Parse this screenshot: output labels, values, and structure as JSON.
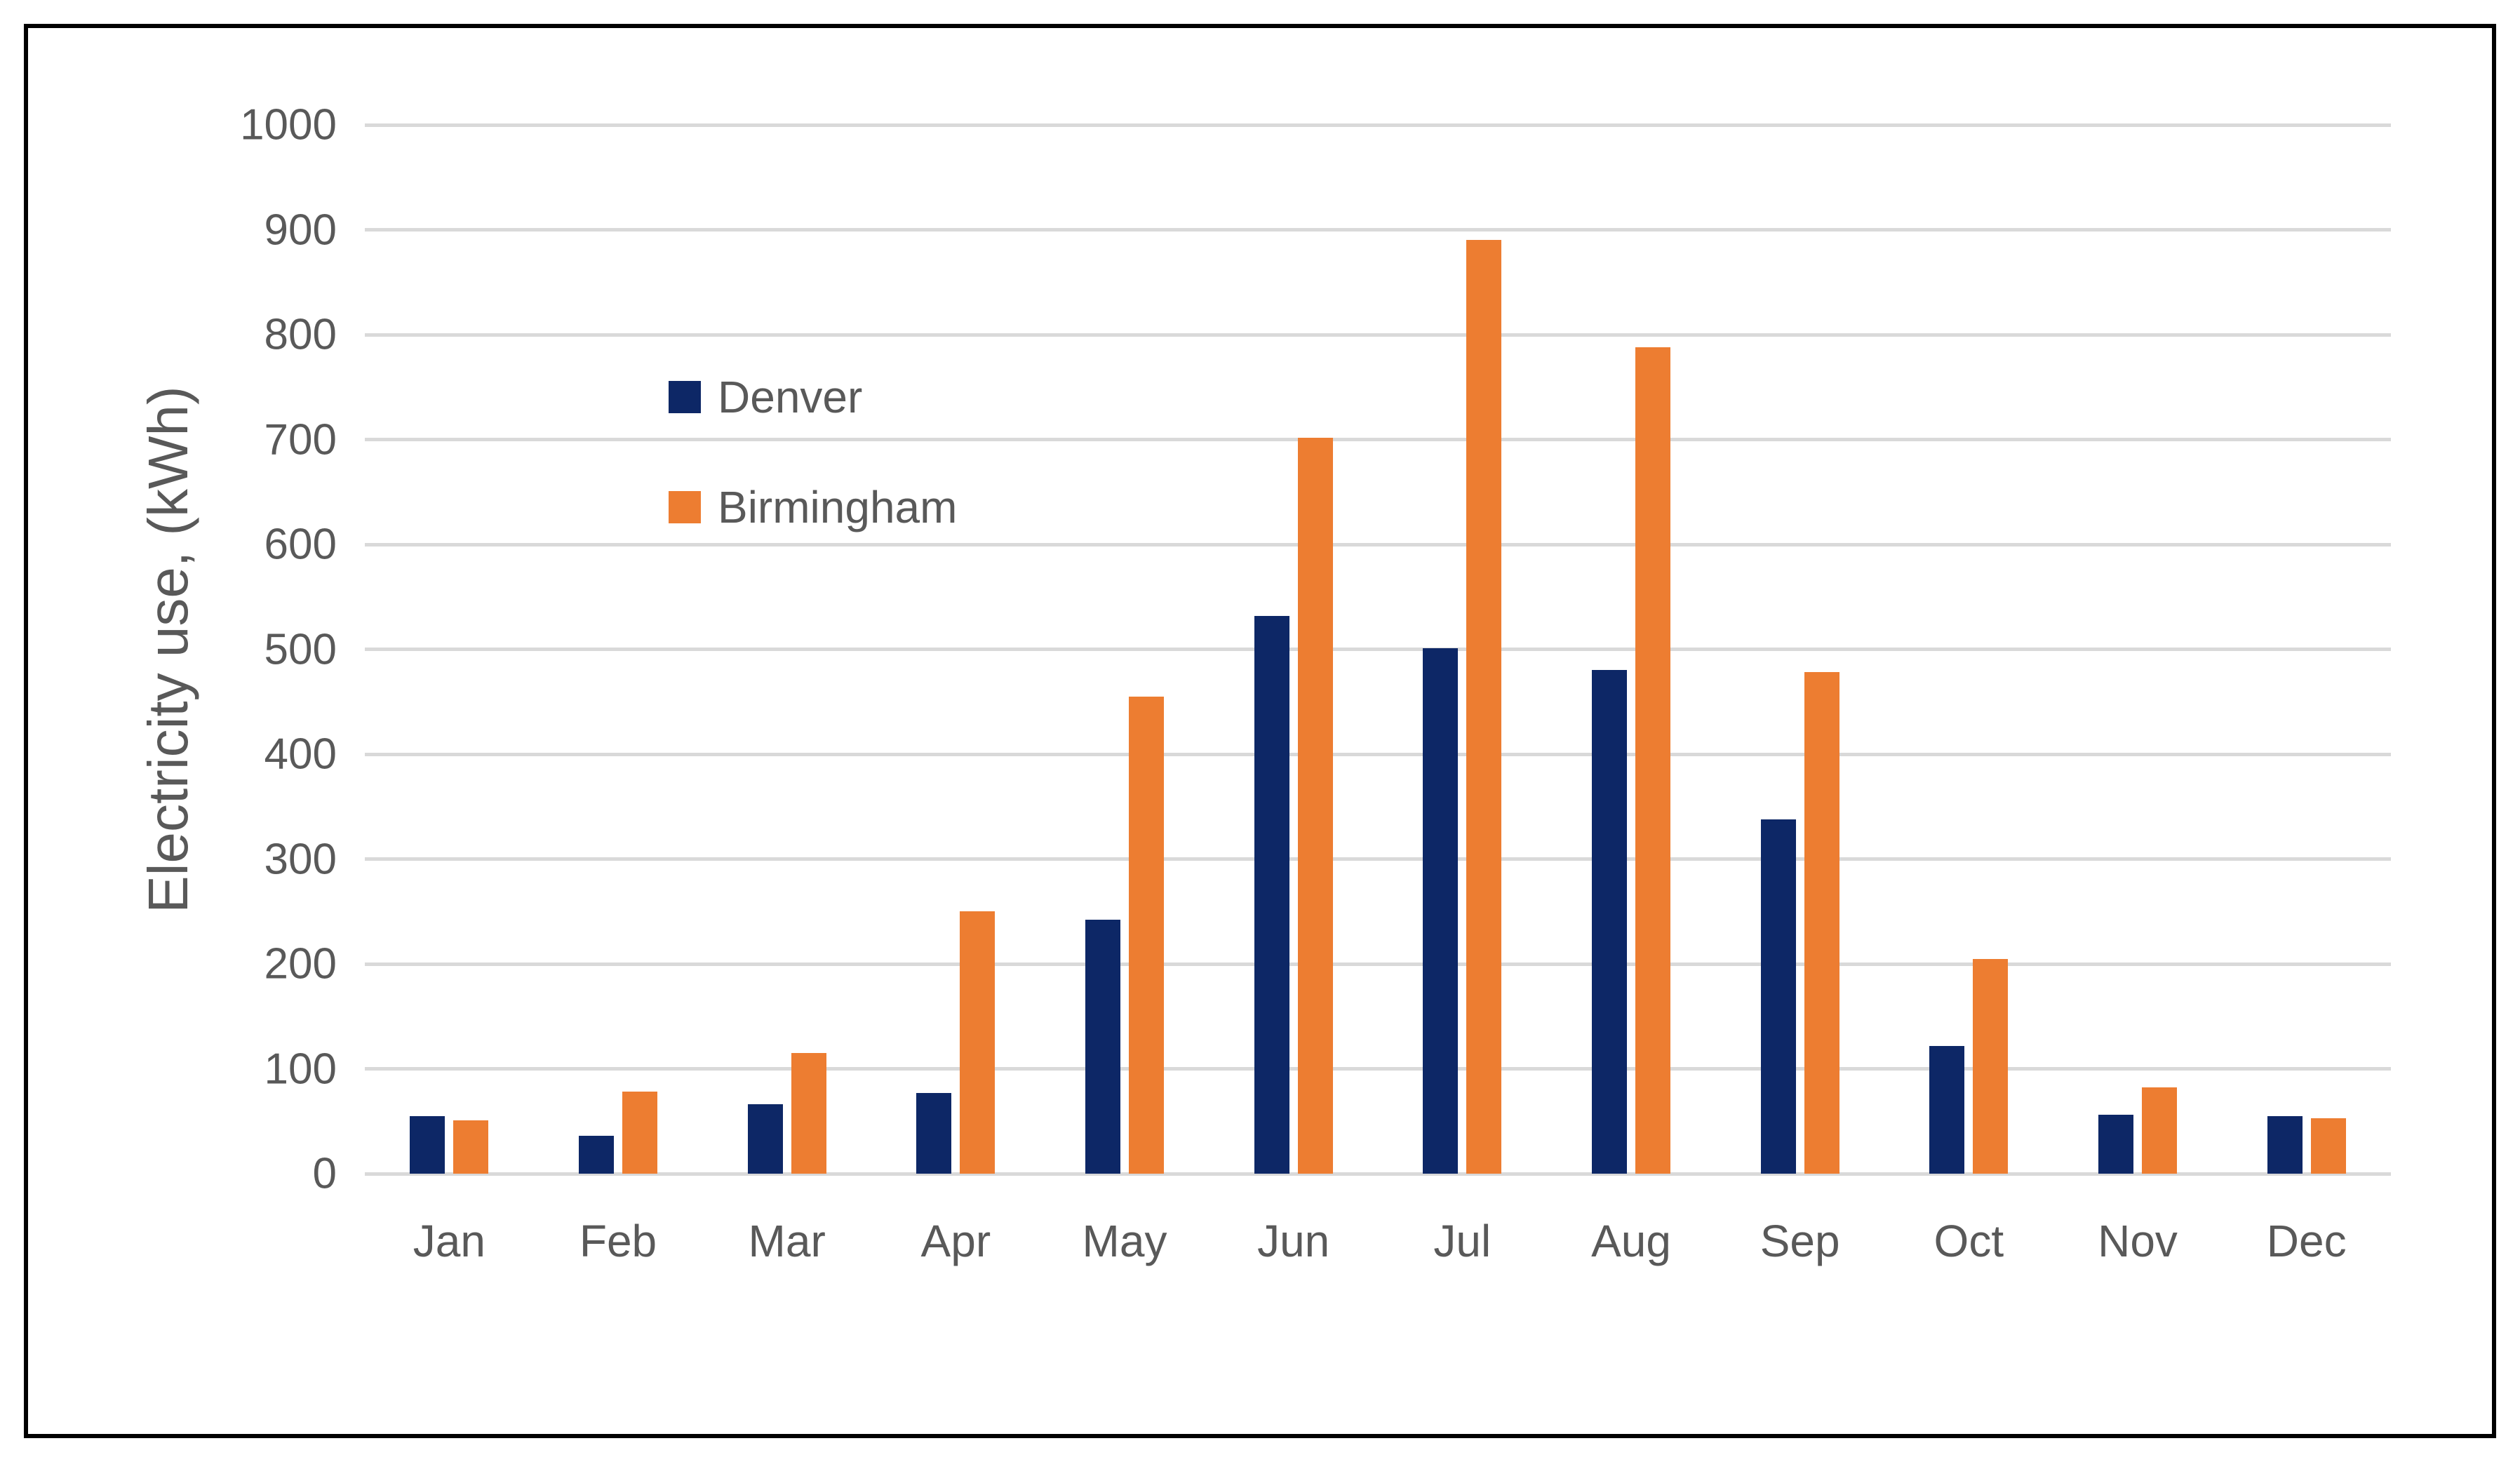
{
  "chart_data": {
    "type": "bar",
    "title": "",
    "xlabel": "",
    "ylabel": "Electricity use, (kWh)",
    "unit": "kWh",
    "ylim": [
      0,
      1000
    ],
    "y_ticks": [
      0,
      100,
      200,
      300,
      400,
      500,
      600,
      700,
      800,
      900,
      1000
    ],
    "grid": "horizontal",
    "legend_position": "inside-top-left",
    "categories": [
      "Jan",
      "Feb",
      "Mar",
      "Apr",
      "May",
      "Jun",
      "Jul",
      "Aug",
      "Sep",
      "Oct",
      "Nov",
      "Dec"
    ],
    "series": [
      {
        "name": "Denver",
        "color": "#0d2766",
        "values": [
          55,
          36,
          66,
          77,
          242,
          532,
          501,
          480,
          338,
          122,
          56,
          55
        ]
      },
      {
        "name": "Birmingham",
        "color": "#ED7D31",
        "values": [
          51,
          78,
          115,
          250,
          455,
          702,
          890,
          788,
          478,
          205,
          82,
          53
        ]
      }
    ]
  },
  "colors": {
    "background": "#FFFFFF",
    "gridline": "#D9D9D9",
    "axis_text": "#595959",
    "frame_border": "#000000"
  }
}
